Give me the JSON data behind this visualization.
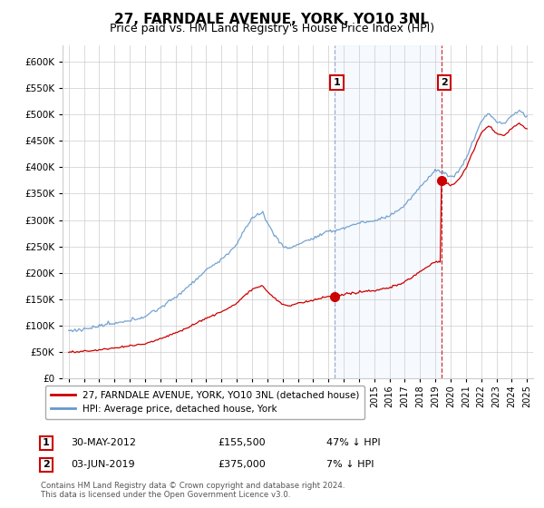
{
  "title": "27, FARNDALE AVENUE, YORK, YO10 3NL",
  "subtitle": "Price paid vs. HM Land Registry's House Price Index (HPI)",
  "ytick_values": [
    0,
    50000,
    100000,
    150000,
    200000,
    250000,
    300000,
    350000,
    400000,
    450000,
    500000,
    550000,
    600000
  ],
  "ylim": [
    0,
    630000
  ],
  "xlim_start": 1994.6,
  "xlim_end": 2025.4,
  "sale1_x": 2012.41,
  "sale1_y": 155500,
  "sale2_x": 2019.42,
  "sale2_y": 375000,
  "vline1_x": 2012.41,
  "vline2_x": 2019.42,
  "bg_shade_x1": 2012.41,
  "bg_shade_x2": 2019.42,
  "legend_line1": "27, FARNDALE AVENUE, YORK, YO10 3NL (detached house)",
  "legend_line2": "HPI: Average price, detached house, York",
  "annotation1_num": "1",
  "annotation1_date": "30-MAY-2012",
  "annotation1_price": "£155,500",
  "annotation1_hpi": "47% ↓ HPI",
  "annotation2_num": "2",
  "annotation2_date": "03-JUN-2019",
  "annotation2_price": "£375,000",
  "annotation2_hpi": "7% ↓ HPI",
  "footnote": "Contains HM Land Registry data © Crown copyright and database right 2024.\nThis data is licensed under the Open Government Licence v3.0.",
  "red_color": "#cc0000",
  "blue_color": "#6699cc",
  "shade_color": "#ddeeff",
  "vline1_color": "#8899bb",
  "vline2_color": "#cc0000",
  "grid_color": "#cccccc",
  "title_fontsize": 11,
  "subtitle_fontsize": 9
}
